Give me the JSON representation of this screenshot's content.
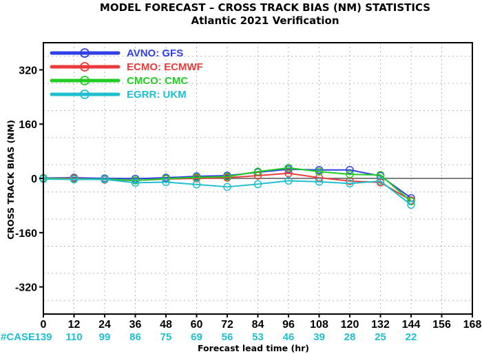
{
  "chart_data": {
    "type": "line",
    "title": "MODEL FORECAST – CROSS TRACK BIAS (NM) STATISTICS",
    "subtitle": "Atlantic 2021 Verification",
    "xlabel": "Forecast lead time (hr)",
    "ylabel": "CROSS TRACK BIAS (NM)",
    "xlim": [
      0,
      168
    ],
    "ylim": [
      -400,
      400
    ],
    "x_ticks": [
      "0",
      "12",
      "24",
      "36",
      "48",
      "60",
      "72",
      "84",
      "96",
      "108",
      "120",
      "132",
      "144",
      "156",
      "168"
    ],
    "y_ticks": [
      320,
      160,
      0,
      -160,
      -320
    ],
    "y_tick_labels": [
      "320",
      "160",
      "0",
      "-160",
      "-320"
    ],
    "grid": true,
    "legend_position": "top-left",
    "x": [
      0,
      12,
      24,
      36,
      48,
      60,
      72,
      84,
      96,
      108,
      120,
      132,
      144
    ],
    "series": [
      {
        "name": "AVNO:  GFS",
        "color": "#2f3fe8",
        "values": [
          1,
          2,
          0,
          -1,
          2,
          6,
          8,
          18,
          27,
          25,
          25,
          7,
          -58
        ]
      },
      {
        "name": "ECMO:  ECMWF",
        "color": "#ec3b3b",
        "values": [
          0,
          0,
          -4,
          -6,
          -2,
          0,
          2,
          8,
          15,
          2,
          -8,
          -12,
          -65
        ]
      },
      {
        "name": "CMCO:  CMC",
        "color": "#22cc22",
        "values": [
          0,
          -2,
          -2,
          -6,
          -1,
          3,
          5,
          20,
          31,
          20,
          12,
          10,
          -68
        ]
      },
      {
        "name": "EGRR:  UKM",
        "color": "#1fbfcf",
        "values": [
          -2,
          -3,
          -3,
          -13,
          -11,
          -18,
          -25,
          -17,
          -7,
          -10,
          -15,
          -8,
          -78
        ]
      }
    ],
    "case_label": "#CASE",
    "case_counts": [
      "139",
      "110",
      "99",
      "86",
      "75",
      "69",
      "56",
      "53",
      "46",
      "39",
      "28",
      "25",
      "22"
    ],
    "case_color": "#1fbfcf",
    "zero_line_color": "#555555"
  }
}
